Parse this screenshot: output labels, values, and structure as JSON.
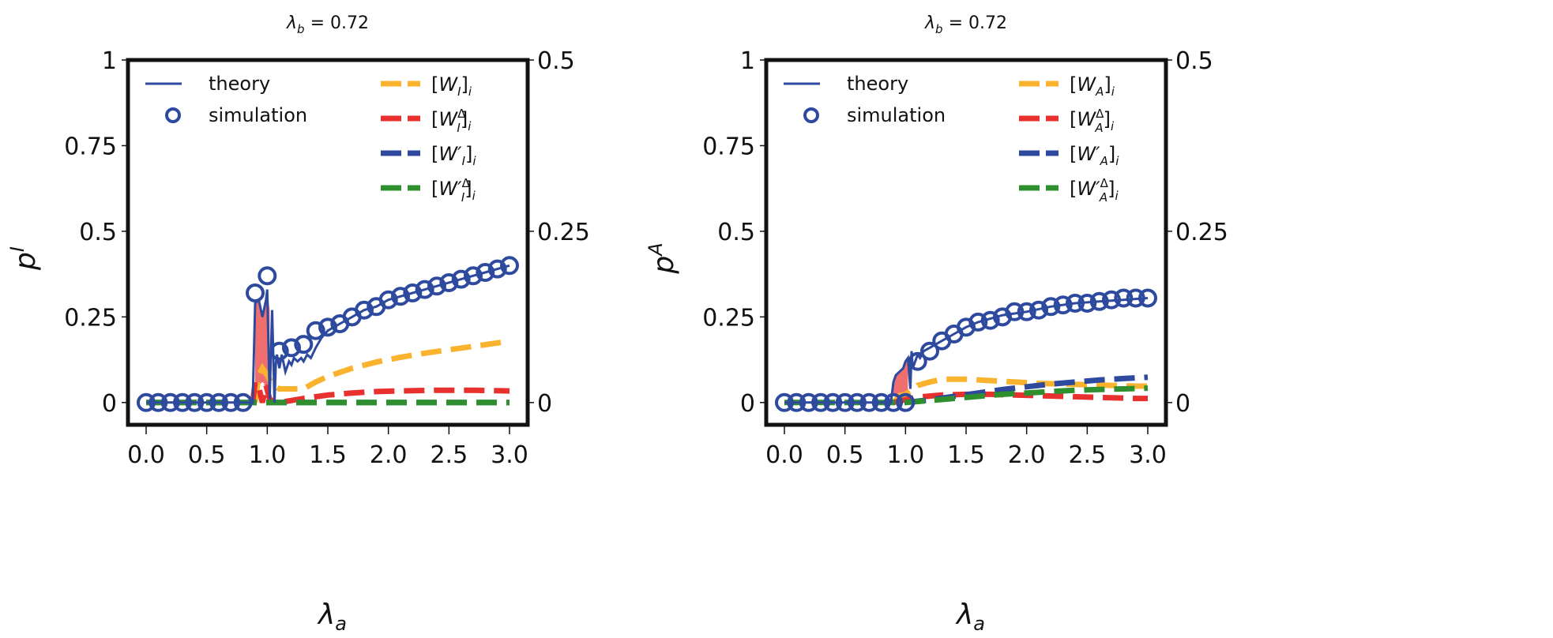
{
  "chart_data": [
    {
      "type": "line",
      "title": "λb = 0.72",
      "title_main": "λ",
      "title_sub": "b",
      "title_rest": " = 0.72",
      "xlabel": "λa",
      "xlabel_main": "λ",
      "xlabel_sub": "a",
      "ylabel": "p^I",
      "ylabel_main": "p",
      "ylabel_sup": "I",
      "xlim": [
        -0.15,
        3.15
      ],
      "ylim": [
        -0.065,
        1.0
      ],
      "y2lim": [
        -0.0325,
        0.5
      ],
      "xticks": [
        "0.0",
        "0.5",
        "1.0",
        "1.5",
        "2.0",
        "2.5",
        "3.0"
      ],
      "xtick_values": [
        0,
        0.5,
        1.0,
        1.5,
        2.0,
        2.5,
        3.0
      ],
      "yticks": [
        "0",
        "0.25",
        "0.5",
        "0.75",
        "1"
      ],
      "ytick_values": [
        0,
        0.25,
        0.5,
        0.75,
        1
      ],
      "y2ticks": [
        "0",
        "0.25",
        "0.5"
      ],
      "y2tick_values": [
        0,
        0.25,
        0.5
      ],
      "grid": false,
      "legend_left": [
        {
          "label": "theory",
          "style": "solid-line",
          "color": "#2e4a9e"
        },
        {
          "label": "simulation",
          "style": "open-circle",
          "color": "#2e4a9e"
        }
      ],
      "legend_right": [
        {
          "label": "[W_I]_i",
          "base": "[W",
          "sub": "I",
          "sup": "",
          "prime": "",
          "tail": "]",
          "tail_sub": "i",
          "color": "#f9b32f"
        },
        {
          "label": "[W_I^Δ]_i",
          "base": "[W",
          "sub": "I",
          "sup": "Δ",
          "prime": "",
          "tail": "]",
          "tail_sub": "i",
          "color": "#e8302e"
        },
        {
          "label": "[W'_I]_i",
          "base": "[W",
          "sub": "I",
          "sup": "",
          "prime": "′",
          "tail": "]",
          "tail_sub": "i",
          "color": "#2e4a9e"
        },
        {
          "label": "[W'^Δ_I]_i",
          "base": "[W",
          "sub": "I",
          "sup": "Δ",
          "prime": "′",
          "tail": "]",
          "tail_sub": "i",
          "color": "#2f8f2f"
        }
      ],
      "legend_placement": "top",
      "fill_color": "#ef6f6f",
      "series": [
        {
          "name": "simulation",
          "axis": "left",
          "kind": "markers",
          "color": "#2e4a9e",
          "x": [
            0,
            0.1,
            0.2,
            0.3,
            0.4,
            0.5,
            0.6,
            0.7,
            0.8,
            0.9,
            1.0,
            1.1,
            1.2,
            1.3,
            1.4,
            1.5,
            1.6,
            1.7,
            1.8,
            1.9,
            2.0,
            2.1,
            2.2,
            2.3,
            2.4,
            2.5,
            2.6,
            2.7,
            2.8,
            2.9,
            3.0
          ],
          "y": [
            0,
            0,
            0,
            0,
            0,
            0,
            0,
            0,
            0,
            0.32,
            0.37,
            0.15,
            0.16,
            0.17,
            0.21,
            0.22,
            0.23,
            0.25,
            0.27,
            0.28,
            0.3,
            0.31,
            0.32,
            0.33,
            0.34,
            0.35,
            0.36,
            0.37,
            0.38,
            0.39,
            0.4
          ]
        },
        {
          "name": "theory",
          "axis": "left",
          "kind": "line",
          "color": "#2e4a9e",
          "x": [
            0,
            0.85,
            0.88,
            0.9,
            0.93,
            0.96,
            0.99,
            1.0,
            1.02,
            1.04,
            1.06,
            1.07,
            1.08,
            1.1,
            1.12,
            1.15,
            1.18,
            1.2,
            1.22,
            1.25,
            1.28,
            1.3,
            1.33,
            1.36,
            1.4,
            1.45,
            1.5,
            1.6,
            1.7,
            1.8,
            1.9,
            2.0,
            2.2,
            2.4,
            2.6,
            2.8,
            3.0
          ],
          "y": [
            0,
            0,
            0,
            0.29,
            0.3,
            0.25,
            0.3,
            0.33,
            0.01,
            0.27,
            0.0,
            0.11,
            0.14,
            0.1,
            0.14,
            0.09,
            0.12,
            0.11,
            0.13,
            0.12,
            0.13,
            0.12,
            0.14,
            0.13,
            0.16,
            0.19,
            0.21,
            0.23,
            0.25,
            0.27,
            0.28,
            0.3,
            0.32,
            0.34,
            0.36,
            0.38,
            0.4
          ]
        },
        {
          "name": "theory-gap-fill",
          "axis": "left",
          "kind": "fill",
          "x": [
            0.9,
            0.93,
            0.96,
            0.99,
            1.0,
            1.02
          ],
          "y_upper": [
            0.29,
            0.3,
            0.25,
            0.3,
            0.33,
            0.27
          ],
          "y_lower": [
            0.05,
            0.05,
            0.06,
            0.05,
            0.05,
            0.05
          ]
        },
        {
          "name": "[W_I]_i",
          "axis": "right",
          "kind": "dashed",
          "color": "#f9b32f",
          "x": [
            0.9,
            0.93,
            0.96,
            1.0,
            1.03,
            1.06,
            1.1,
            1.2,
            1.3,
            1.4,
            1.5,
            1.7,
            1.9,
            2.1,
            2.3,
            2.5,
            2.7,
            2.9,
            3.0
          ],
          "y": [
            0.0,
            0.04,
            0.05,
            0.04,
            0.03,
            0.025,
            0.02,
            0.02,
            0.02,
            0.03,
            0.038,
            0.05,
            0.059,
            0.066,
            0.072,
            0.077,
            0.082,
            0.087,
            0.09
          ]
        },
        {
          "name": "[W_I^Δ]_i",
          "axis": "right",
          "kind": "dashed",
          "color": "#e8302e",
          "x": [
            0.88,
            0.9,
            0.93,
            0.96,
            0.99,
            1.02,
            1.05,
            1.1,
            1.2,
            1.3,
            1.5,
            1.7,
            1.9,
            2.1,
            2.4,
            2.7,
            3.0
          ],
          "y": [
            0,
            0.03,
            0.022,
            0.0,
            0.025,
            0.005,
            0.002,
            0.0,
            0.003,
            0.006,
            0.011,
            0.014,
            0.016,
            0.017,
            0.018,
            0.018,
            0.017
          ]
        },
        {
          "name": "[W'_I]_i",
          "axis": "right",
          "kind": "dashed",
          "color": "#2e4a9e",
          "x": [
            0,
            3.0
          ],
          "y": [
            0,
            0
          ]
        },
        {
          "name": "[W'^Δ_I]_i",
          "axis": "right",
          "kind": "dashed",
          "color": "#2f8f2f",
          "x": [
            0,
            3.0
          ],
          "y": [
            0,
            0
          ]
        }
      ]
    },
    {
      "type": "line",
      "title": "λb = 0.72",
      "title_main": "λ",
      "title_sub": "b",
      "title_rest": " = 0.72",
      "xlabel": "λa",
      "xlabel_main": "λ",
      "xlabel_sub": "a",
      "ylabel": "p^A",
      "ylabel_main": "p",
      "ylabel_sup": "A",
      "xlim": [
        -0.15,
        3.15
      ],
      "ylim": [
        -0.065,
        1.0
      ],
      "y2lim": [
        -0.0325,
        0.5
      ],
      "xticks": [
        "0.0",
        "0.5",
        "1.0",
        "1.5",
        "2.0",
        "2.5",
        "3.0"
      ],
      "xtick_values": [
        0,
        0.5,
        1.0,
        1.5,
        2.0,
        2.5,
        3.0
      ],
      "yticks": [
        "0",
        "0.25",
        "0.5",
        "0.75",
        "1"
      ],
      "ytick_values": [
        0,
        0.25,
        0.5,
        0.75,
        1
      ],
      "y2ticks": [
        "0",
        "0.25",
        "0.5"
      ],
      "y2tick_values": [
        0,
        0.25,
        0.5
      ],
      "grid": false,
      "legend_left": [
        {
          "label": "theory",
          "style": "solid-line",
          "color": "#2e4a9e"
        },
        {
          "label": "simulation",
          "style": "open-circle",
          "color": "#2e4a9e"
        }
      ],
      "legend_right": [
        {
          "label": "[W_A]_i",
          "base": "[W",
          "sub": "A",
          "sup": "",
          "prime": "",
          "tail": "]",
          "tail_sub": "i",
          "color": "#f9b32f"
        },
        {
          "label": "[W_A^Δ]_i",
          "base": "[W",
          "sub": "A",
          "sup": "Δ",
          "prime": "",
          "tail": "]",
          "tail_sub": "i",
          "color": "#e8302e"
        },
        {
          "label": "[W'_A]_i",
          "base": "[W",
          "sub": "A",
          "sup": "",
          "prime": "′",
          "tail": "]",
          "tail_sub": "i",
          "color": "#2e4a9e"
        },
        {
          "label": "[W'^Δ_A]_i",
          "base": "[W",
          "sub": "A",
          "sup": "Δ",
          "prime": "′",
          "tail": "]",
          "tail_sub": "i",
          "color": "#2f8f2f"
        }
      ],
      "legend_placement": "top",
      "fill_color": "#ef6f6f",
      "series": [
        {
          "name": "simulation",
          "axis": "left",
          "kind": "markers",
          "color": "#2e4a9e",
          "x": [
            0,
            0.1,
            0.2,
            0.3,
            0.4,
            0.5,
            0.6,
            0.7,
            0.8,
            0.9,
            1.0,
            1.1,
            1.2,
            1.3,
            1.4,
            1.5,
            1.6,
            1.7,
            1.8,
            1.9,
            2.0,
            2.1,
            2.2,
            2.3,
            2.4,
            2.5,
            2.6,
            2.7,
            2.8,
            2.9,
            3.0
          ],
          "y": [
            0,
            0,
            0,
            0,
            0,
            0,
            0,
            0,
            0,
            0,
            0,
            0.12,
            0.15,
            0.18,
            0.2,
            0.22,
            0.235,
            0.24,
            0.25,
            0.265,
            0.265,
            0.27,
            0.28,
            0.285,
            0.29,
            0.29,
            0.295,
            0.3,
            0.305,
            0.305,
            0.305
          ]
        },
        {
          "name": "theory",
          "axis": "left",
          "kind": "line",
          "color": "#2e4a9e",
          "x": [
            0,
            0.88,
            0.9,
            0.92,
            0.95,
            0.98,
            1.0,
            1.02,
            1.04,
            1.05,
            1.06,
            1.08,
            1.1,
            1.12,
            1.15,
            1.2,
            1.3,
            1.4,
            1.5,
            1.6,
            1.8,
            2.0,
            2.2,
            2.4,
            2.6,
            2.8,
            3.0
          ],
          "y": [
            0,
            0,
            0.06,
            0.08,
            0.09,
            0.1,
            0.12,
            0.13,
            0.04,
            0.15,
            0.1,
            0.12,
            0.14,
            0.13,
            0.15,
            0.16,
            0.18,
            0.2,
            0.22,
            0.235,
            0.255,
            0.265,
            0.28,
            0.29,
            0.295,
            0.3,
            0.305
          ]
        },
        {
          "name": "theory-gap-fill",
          "axis": "left",
          "kind": "fill",
          "x": [
            0.9,
            0.92,
            0.95,
            0.98,
            1.0,
            1.02
          ],
          "y_upper": [
            0.06,
            0.08,
            0.09,
            0.1,
            0.12,
            0.13
          ],
          "y_lower": [
            0.02,
            0.02,
            0.025,
            0.03,
            0.03,
            0.035
          ]
        },
        {
          "name": "[W_A]_i",
          "axis": "right",
          "kind": "dashed",
          "color": "#f9b32f",
          "x": [
            0.9,
            0.95,
            1.0,
            1.05,
            1.1,
            1.2,
            1.3,
            1.5,
            1.7,
            1.9,
            2.1,
            2.3,
            2.5,
            2.7,
            2.9,
            3.0
          ],
          "y": [
            0.0,
            0.01,
            0.012,
            0.018,
            0.025,
            0.03,
            0.034,
            0.034,
            0.032,
            0.03,
            0.028,
            0.027,
            0.026,
            0.025,
            0.024,
            0.024
          ]
        },
        {
          "name": "[W_A^Δ]_i",
          "axis": "right",
          "kind": "dashed",
          "color": "#e8302e",
          "x": [
            0.9,
            1.0,
            1.1,
            1.3,
            1.5,
            1.7,
            1.9,
            2.1,
            2.3,
            2.5,
            2.7,
            2.9,
            3.0
          ],
          "y": [
            0.0,
            0.004,
            0.008,
            0.011,
            0.012,
            0.012,
            0.011,
            0.01,
            0.009,
            0.008,
            0.007,
            0.006,
            0.006
          ]
        },
        {
          "name": "[W'_A]_i",
          "axis": "right",
          "kind": "dashed",
          "color": "#2e4a9e",
          "x": [
            1.0,
            1.2,
            1.4,
            1.6,
            1.8,
            2.0,
            2.2,
            2.4,
            2.6,
            2.8,
            3.0
          ],
          "y": [
            0.0,
            0.004,
            0.009,
            0.014,
            0.019,
            0.023,
            0.027,
            0.03,
            0.033,
            0.035,
            0.037
          ]
        },
        {
          "name": "[W'^Δ_A]_i",
          "axis": "right",
          "kind": "dashed",
          "color": "#2f8f2f",
          "x": [
            0,
            1.0,
            1.2,
            1.4,
            1.6,
            1.8,
            2.0,
            2.2,
            2.4,
            2.6,
            2.8,
            3.0
          ],
          "y": [
            0,
            0,
            0.003,
            0.006,
            0.009,
            0.012,
            0.014,
            0.016,
            0.018,
            0.019,
            0.02,
            0.021
          ]
        }
      ]
    }
  ]
}
